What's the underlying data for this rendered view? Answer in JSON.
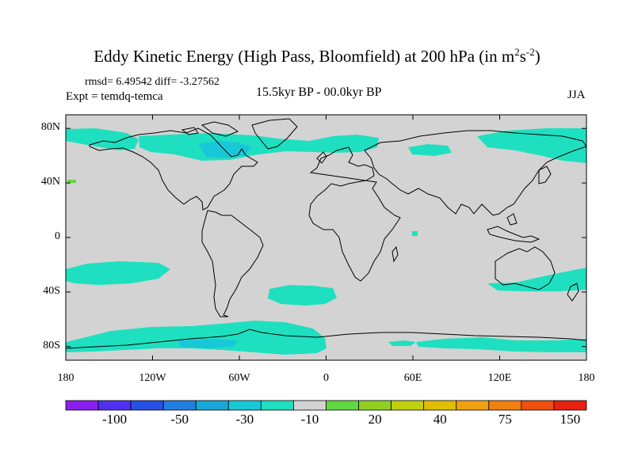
{
  "title": {
    "main": "Eddy Kinetic Energy (High Pass, Bloomfield) at 200 hPa (in m",
    "sup1": "2",
    "s": "s",
    "sup2": "-2",
    "close": ")"
  },
  "stats": "rmsd= 6.49542 diff= -3.27562",
  "experiment": "Expt = temdq-temca",
  "period": "15.5kyr BP - 00.0kyr BP",
  "season": "JJA",
  "axes": {
    "y_ticks": [
      {
        "label": "80N",
        "lat": 80
      },
      {
        "label": "40N",
        "lat": 40
      },
      {
        "label": "0",
        "lat": 0
      },
      {
        "label": "40S",
        "lat": -40
      },
      {
        "label": "80S",
        "lat": -80
      }
    ],
    "x_ticks": [
      {
        "label": "180",
        "lon": -180
      },
      {
        "label": "120W",
        "lon": -120
      },
      {
        "label": "60W",
        "lon": -60
      },
      {
        "label": "0",
        "lon": 0
      },
      {
        "label": "60E",
        "lon": 60
      },
      {
        "label": "120E",
        "lon": 120
      },
      {
        "label": "180",
        "lon": 180
      }
    ],
    "lat_range": [
      -90,
      90
    ],
    "lon_range": [
      -180,
      180
    ]
  },
  "colors": {
    "background_field": "#d3d3d3",
    "anomaly_-10_to_-30": "#1ee0c0",
    "anomaly_-30_to_-50": "#18c8d8",
    "anomaly_positive_small": "#60d840",
    "coast": "#000000"
  },
  "colorbar": {
    "colors": [
      "#8a20f0",
      "#5030f0",
      "#2850e8",
      "#2080e0",
      "#18a8d8",
      "#18c8d8",
      "#1ee0c0",
      "#d3d3d3",
      "#60d840",
      "#90d020",
      "#c0d010",
      "#e0c000",
      "#f0a010",
      "#f08010",
      "#f05010",
      "#e82010"
    ],
    "labels": [
      {
        "text": "-100",
        "boundary": 2
      },
      {
        "text": "-50",
        "boundary": 4
      },
      {
        "text": "-30",
        "boundary": 6
      },
      {
        "text": "-10",
        "boundary": 8
      },
      {
        "text": "20",
        "boundary": 10
      },
      {
        "text": "40",
        "boundary": 12
      },
      {
        "text": "75",
        "boundary": 14
      },
      {
        "text": "150",
        "boundary": 16
      }
    ]
  }
}
